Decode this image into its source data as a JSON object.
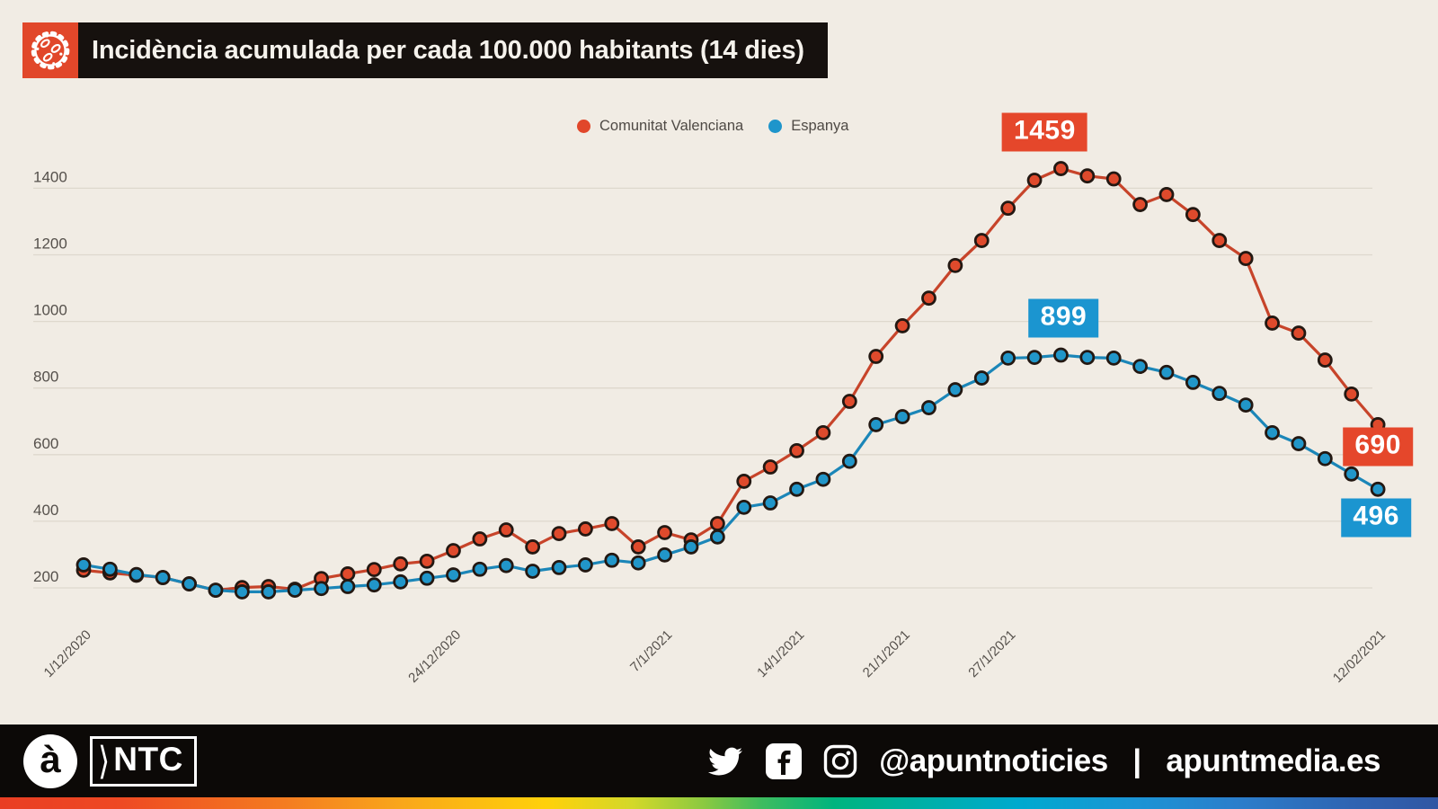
{
  "header": {
    "title": "Incidència acumulada per cada 100.000 habitants (14 dies)",
    "icon": "virus-icon",
    "icon_bg": "#e1472a",
    "bar_color": "#16110e"
  },
  "legend": [
    {
      "label": "Comunitat Valenciana",
      "color": "#e1472a"
    },
    {
      "label": "Espanya",
      "color": "#1e95cb"
    }
  ],
  "chart_data": {
    "type": "line",
    "title": "Incidència acumulada per cada 100.000 habitants (14 dies)",
    "grid": true,
    "legend_position": "top-center",
    "y_ticks": [
      200,
      400,
      600,
      800,
      1000,
      1200,
      1400
    ],
    "ylim": [
      150,
      1500
    ],
    "x_tick_labels": [
      {
        "label": "1/12/2020",
        "index": 0
      },
      {
        "label": "24/12/2020",
        "index": 14
      },
      {
        "label": "7/1/2021",
        "index": 22
      },
      {
        "label": "14/1/2021",
        "index": 27
      },
      {
        "label": "21/1/2021",
        "index": 31
      },
      {
        "label": "27/1/2021",
        "index": 35
      },
      {
        "label": "12/02/2021",
        "index": 49
      }
    ],
    "series": [
      {
        "name": "Comunitat Valenciana",
        "color": "#df4a2c",
        "line_color": "#c7442a",
        "values": [
          253,
          245,
          238,
          231,
          212,
          193,
          201,
          204,
          196,
          228,
          242,
          255,
          272,
          280,
          312,
          347,
          374,
          323,
          363,
          377,
          393,
          323,
          366,
          344,
          393,
          520,
          563,
          612,
          666,
          760,
          895,
          987,
          1070,
          1168,
          1243,
          1340,
          1424,
          1459,
          1437,
          1428,
          1351,
          1381,
          1321,
          1243,
          1189,
          995,
          965,
          884,
          782,
          690
        ]
      },
      {
        "name": "Espanya",
        "color": "#2196c9",
        "line_color": "#1b86b8",
        "values": [
          269,
          256,
          240,
          231,
          212,
          193,
          188,
          188,
          193,
          198,
          204,
          209,
          218,
          229,
          239,
          256,
          267,
          250,
          261,
          269,
          283,
          275,
          299,
          323,
          353,
          442,
          455,
          496,
          526,
          580,
          690,
          714,
          741,
          795,
          830,
          890,
          892,
          899,
          892,
          890,
          865,
          847,
          817,
          784,
          749,
          666,
          633,
          588,
          542,
          496
        ]
      }
    ],
    "annotations": [
      {
        "text": "1459",
        "series": "Comunitat Valenciana",
        "point_index": 37,
        "color": "#e5472b"
      },
      {
        "text": "899",
        "series": "Espanya",
        "point_index": 37,
        "color": "#1b95d0"
      },
      {
        "text": "690",
        "series": "Comunitat Valenciana",
        "point_index": 49,
        "color": "#e5472b"
      },
      {
        "text": "496",
        "series": "Espanya",
        "point_index": 49,
        "color": "#1b95d0"
      }
    ]
  },
  "footer": {
    "brand_circle": "à",
    "brand_box": "NTC",
    "brand_chevron": "⟩",
    "social_icons": [
      "twitter-icon",
      "facebook-icon",
      "instagram-icon"
    ],
    "handle": "@apuntnoticies",
    "separator": "|",
    "website": "apuntmedia.es"
  }
}
